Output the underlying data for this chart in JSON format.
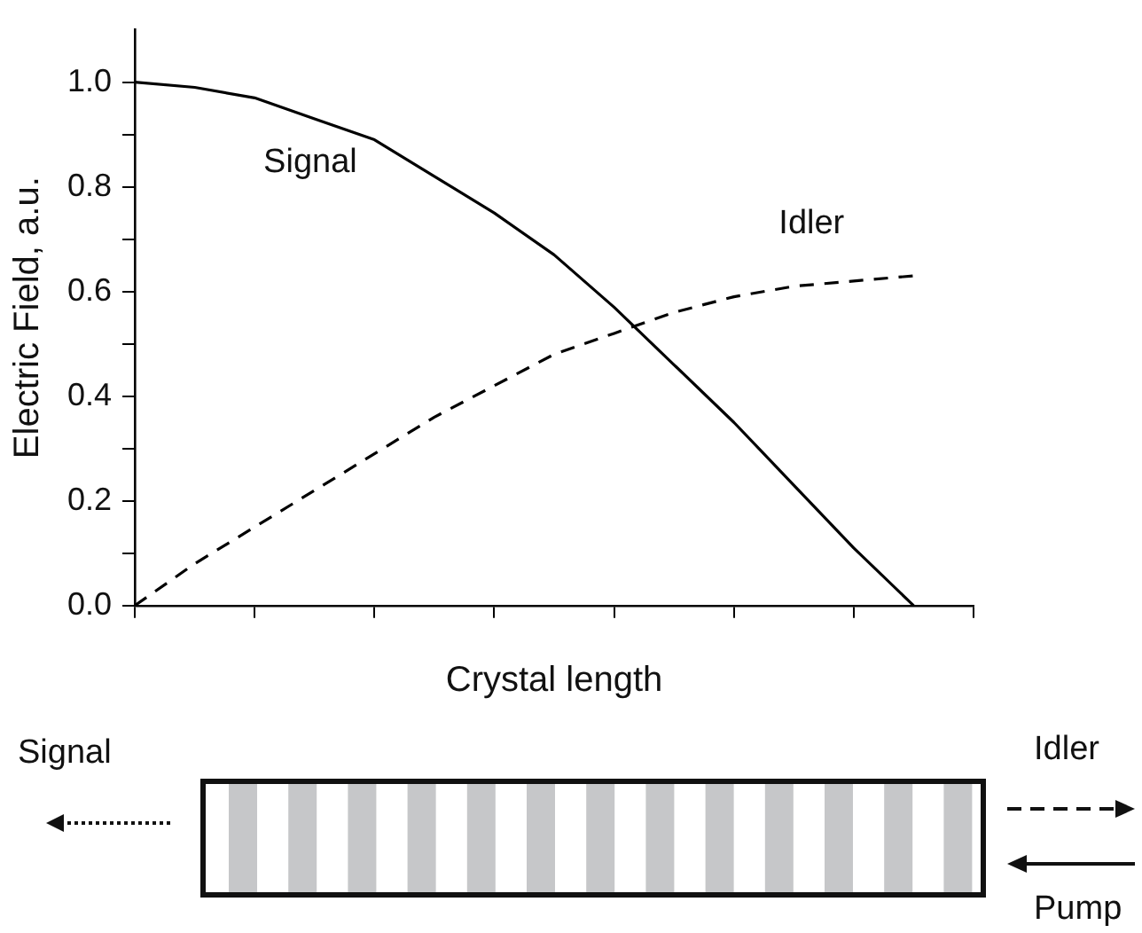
{
  "chart_data": {
    "type": "line",
    "xlabel": "Crystal length",
    "ylabel": "Electric Field, a.u.",
    "categories": [
      null,
      null,
      null,
      null,
      null,
      null,
      null,
      null,
      null,
      null,
      null,
      null,
      null,
      null,
      null
    ],
    "ylim": [
      0,
      1.1
    ],
    "yticks": [
      {
        "value": 0,
        "label": "0.0"
      },
      {
        "value": 0.1,
        "label": null
      },
      {
        "value": 0.2,
        "label": "0.2"
      },
      {
        "value": 0.3,
        "label": null
      },
      {
        "value": 0.4,
        "label": "0.4"
      },
      {
        "value": 0.5,
        "label": null
      },
      {
        "value": 0.6,
        "label": "0.6"
      },
      {
        "value": 0.7,
        "label": null
      },
      {
        "value": 0.8,
        "label": "0.8"
      },
      {
        "value": 0.9,
        "label": null
      },
      {
        "value": 1,
        "label": "1.0"
      }
    ],
    "series": [
      {
        "name": "Signal",
        "color": "#000000",
        "line_style": "solid",
        "values": [
          1.0,
          0.99,
          0.97,
          0.93,
          0.89,
          0.82,
          0.75,
          0.67,
          0.57,
          0.46,
          0.35,
          0.23,
          0.11,
          0.0,
          null
        ]
      },
      {
        "name": "Idler",
        "color": "#000000",
        "line_style": "dashed",
        "values": [
          0,
          0.08,
          0.15,
          0.22,
          0.29,
          0.36,
          0.42,
          0.48,
          0.52,
          0.56,
          0.59,
          0.61,
          0.62,
          0.63,
          null
        ]
      }
    ],
    "marker": "none",
    "grid": false,
    "tick_labels": "y",
    "annotations": [
      "Signal",
      "Idler",
      "Pump"
    ]
  }
}
